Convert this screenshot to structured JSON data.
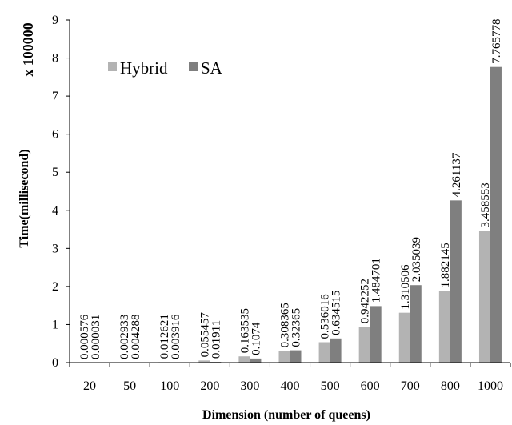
{
  "chart_data": {
    "type": "bar",
    "categories": [
      "20",
      "50",
      "100",
      "200",
      "300",
      "400",
      "500",
      "600",
      "700",
      "800",
      "1000"
    ],
    "series": [
      {
        "name": "Hybrid",
        "color": "#b3b3b3",
        "values": [
          0.000576,
          0.002933,
          0.012621,
          0.055457,
          0.163535,
          0.308365,
          0.536016,
          0.942252,
          1.310506,
          1.882145,
          3.458553
        ],
        "labels": [
          "0.000576",
          "0.002933",
          "0.012621",
          "0.055457",
          "0.163535",
          "0.308365",
          "0.536016",
          "0.942252",
          "1.310506",
          "1.882145",
          "3.458553"
        ]
      },
      {
        "name": "SA",
        "color": "#7f7f7f",
        "values": [
          3.1e-05,
          0.004288,
          0.003916,
          0.01911,
          0.1074,
          0.32365,
          0.634515,
          1.484701,
          2.035039,
          4.261137,
          7.765778
        ],
        "labels": [
          "0.000031",
          "0.004288",
          "0.003916",
          "0.01911",
          "0.1074",
          "0.32365",
          "0.634515",
          "1.484701",
          "2.035039",
          "4.261137",
          "7.765778"
        ]
      }
    ],
    "xlabel": "Dimension (number of queens)",
    "ylabel": "Time(millisecond)",
    "y_multiplier_label": "x 100000",
    "ylim": [
      0,
      9
    ],
    "yticks": [
      "0",
      "1",
      "2",
      "3",
      "4",
      "5",
      "6",
      "7",
      "8",
      "9"
    ],
    "legend_position": "top-left",
    "grid": false
  }
}
